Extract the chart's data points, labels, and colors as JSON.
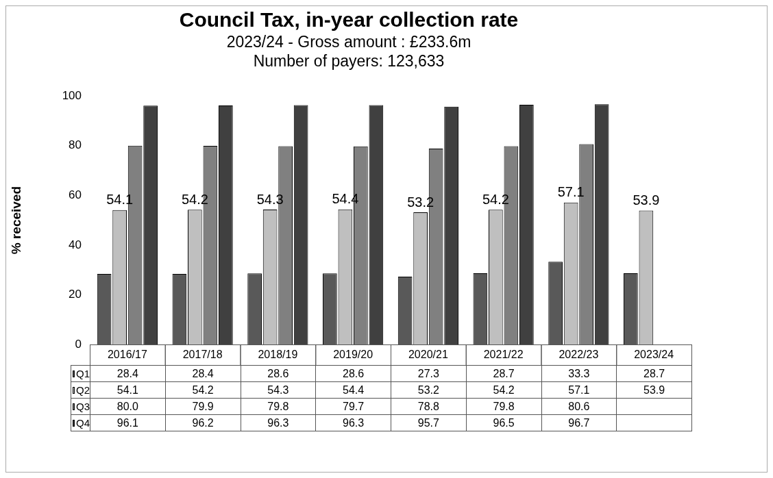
{
  "chart_data": {
    "type": "bar",
    "title": "Council Tax, in-year collection rate",
    "subtitle": "2023/24 - Gross amount : £233.6m\nNumber of payers: 123,633",
    "ylabel": "% received",
    "categories": [
      "2016/17",
      "2017/18",
      "2018/19",
      "2019/20",
      "2020/21",
      "2021/22",
      "2022/23",
      "2023/24"
    ],
    "series": [
      {
        "name": "Q1",
        "color": "#595959",
        "values": [
          28.4,
          28.4,
          28.6,
          28.6,
          27.3,
          28.7,
          33.3,
          28.7
        ],
        "value_labels": [
          "28.4",
          "28.4",
          "28.6",
          "28.6",
          "27.3",
          "28.7",
          "33.3",
          "28.7"
        ]
      },
      {
        "name": "Q2",
        "color": "#bfbfbf",
        "values": [
          54.1,
          54.2,
          54.3,
          54.4,
          53.2,
          54.2,
          57.1,
          53.9
        ],
        "value_labels": [
          "54.1",
          "54.2",
          "54.3",
          "54.4",
          "53.2",
          "54.2",
          "57.1",
          "53.9"
        ]
      },
      {
        "name": "Q3",
        "color": "#808080",
        "values": [
          80.0,
          79.9,
          79.8,
          79.7,
          78.8,
          79.8,
          80.6,
          null
        ],
        "value_labels": [
          "80.0",
          "79.9",
          "79.8",
          "79.7",
          "78.8",
          "79.8",
          "80.6",
          null
        ]
      },
      {
        "name": "Q4",
        "color": "#404040",
        "values": [
          96.1,
          96.2,
          96.3,
          96.3,
          95.7,
          96.5,
          96.7,
          null
        ],
        "value_labels": [
          "96.1",
          "96.2",
          "96.3",
          "96.3",
          "95.7",
          "96.5",
          "96.7",
          null
        ]
      }
    ],
    "annotations": [
      {
        "text": "54.1",
        "x": "2016/17",
        "y": 54.1
      },
      {
        "text": "54.2",
        "x": "2017/18",
        "y": 54.2
      },
      {
        "text": "54.3",
        "x": "2018/19",
        "y": 54.3
      },
      {
        "text": "54.4",
        "x": "2019/20",
        "y": 54.4
      },
      {
        "text": "53.2",
        "x": "2020/21",
        "y": 53.2
      },
      {
        "text": "54.2",
        "x": "2021/22",
        "y": 54.2
      },
      {
        "text": "57.1",
        "x": "2022/23",
        "y": 57.1
      },
      {
        "text": "53.9",
        "x": "2023/24",
        "y": 53.9
      }
    ],
    "ylim": [
      0,
      100
    ],
    "yticks": [
      0,
      20,
      40,
      60,
      80,
      100
    ],
    "grid": false,
    "legend": "bottom"
  }
}
